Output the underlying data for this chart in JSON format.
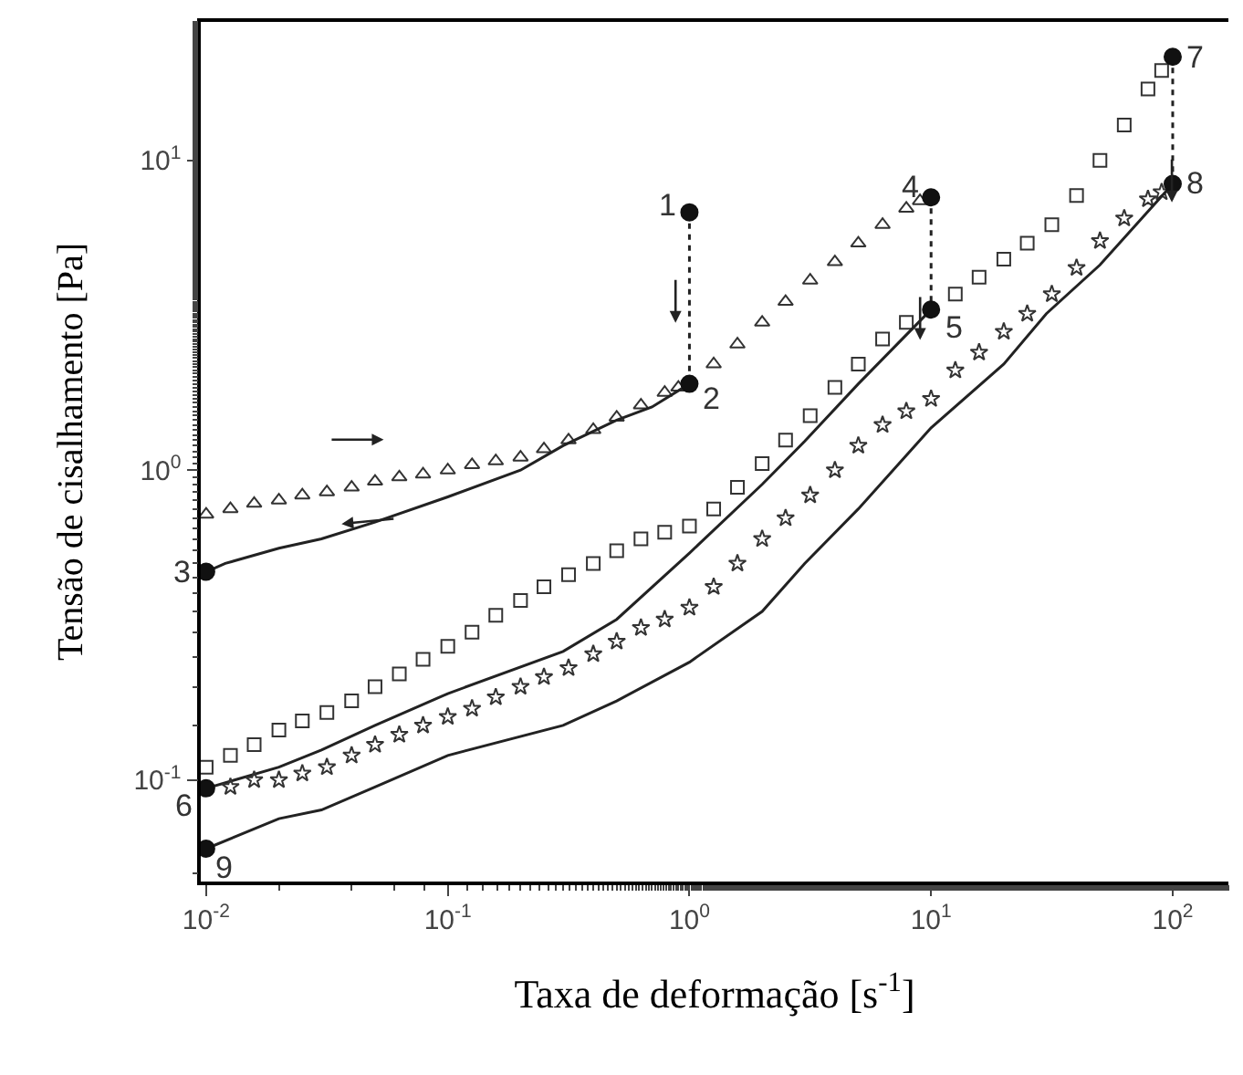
{
  "chart_data": {
    "type": "scatter",
    "xlabel": "Taxa de deformação [s$^{-1}$]",
    "ylabel": "Tensão de cisalhamento [Pa]",
    "log": "xy",
    "xlim": [
      0.0095,
      170
    ],
    "ylim": [
      0.047,
      28
    ],
    "xticks": [
      {
        "value": 0.01,
        "label": "10$^{-2}$"
      },
      {
        "value": 0.1,
        "label": "10$^{-1}$"
      },
      {
        "value": 1,
        "label": "10$^{0}$"
      },
      {
        "value": 10,
        "label": "10$^{1}$"
      },
      {
        "value": 100,
        "label": "10$^{2}$"
      }
    ],
    "yticks": [
      {
        "value": 0.1,
        "label": "10$^{-1}$"
      },
      {
        "value": 1,
        "label": "10$^{0}$"
      },
      {
        "value": 10,
        "label": "10$^{1}$"
      }
    ],
    "series": [
      {
        "marker": "triangle",
        "color": "#333333",
        "x": [
          0.01,
          0.0126,
          0.0158,
          0.02,
          0.025,
          0.0316,
          0.04,
          0.05,
          0.063,
          0.079,
          0.1,
          0.126,
          0.158,
          0.2,
          0.25,
          0.316,
          0.4,
          0.5,
          0.63,
          0.79,
          0.9,
          1.26,
          1.58,
          2,
          2.5,
          3.16,
          4,
          5,
          6.3,
          7.9,
          9
        ],
        "values": [
          0.72,
          0.75,
          0.78,
          0.8,
          0.83,
          0.85,
          0.88,
          0.92,
          0.95,
          0.97,
          1.0,
          1.04,
          1.07,
          1.1,
          1.17,
          1.25,
          1.35,
          1.48,
          1.62,
          1.78,
          1.85,
          2.2,
          2.55,
          3.0,
          3.5,
          4.1,
          4.7,
          5.4,
          6.2,
          7.0,
          7.4
        ]
      },
      {
        "type": "line",
        "color": "#222222",
        "line_style": "solid",
        "marker": "none",
        "x": [
          1,
          0.7,
          0.5,
          0.3,
          0.2,
          0.1,
          0.05,
          0.03,
          0.02,
          0.012,
          0.01
        ],
        "values": [
          1.9,
          1.6,
          1.45,
          1.2,
          1.0,
          0.82,
          0.68,
          0.6,
          0.56,
          0.5,
          0.47
        ]
      },
      {
        "marker": "square",
        "color": "#333333",
        "x": [
          0.01,
          0.0126,
          0.0158,
          0.02,
          0.025,
          0.0316,
          0.04,
          0.05,
          0.063,
          0.079,
          0.1,
          0.126,
          0.158,
          0.2,
          0.25,
          0.316,
          0.4,
          0.5,
          0.63,
          0.79,
          1,
          1.26,
          1.58,
          2,
          2.5,
          3.16,
          4,
          5,
          6.3,
          7.9,
          12.6,
          15.8,
          20,
          25,
          31.6,
          40,
          50,
          63,
          79,
          90
        ],
        "values": [
          0.11,
          0.12,
          0.13,
          0.145,
          0.155,
          0.165,
          0.18,
          0.2,
          0.22,
          0.245,
          0.27,
          0.3,
          0.34,
          0.38,
          0.42,
          0.46,
          0.5,
          0.55,
          0.6,
          0.63,
          0.66,
          0.75,
          0.88,
          1.05,
          1.25,
          1.5,
          1.85,
          2.2,
          2.65,
          3.0,
          3.7,
          4.2,
          4.8,
          5.4,
          6.2,
          7.7,
          10,
          13,
          17,
          19.5
        ]
      },
      {
        "type": "line",
        "color": "#222222",
        "line_style": "solid",
        "marker": "none",
        "x": [
          10,
          5,
          3,
          2,
          1,
          0.5,
          0.3,
          0.1,
          0.05,
          0.03,
          0.02,
          0.01
        ],
        "values": [
          3.3,
          1.9,
          1.24,
          0.9,
          0.54,
          0.33,
          0.26,
          0.19,
          0.15,
          0.125,
          0.11,
          0.094
        ]
      },
      {
        "marker": "star",
        "color": "#333333",
        "x": [
          0.0126,
          0.0158,
          0.02,
          0.025,
          0.0316,
          0.04,
          0.05,
          0.063,
          0.079,
          0.1,
          0.126,
          0.158,
          0.2,
          0.25,
          0.316,
          0.4,
          0.5,
          0.63,
          0.79,
          1,
          1.26,
          1.58,
          2,
          2.5,
          3.16,
          4,
          5,
          6.3,
          7.9,
          10,
          12.6,
          15.8,
          20,
          25,
          31.6,
          40,
          50,
          63,
          79,
          90
        ],
        "values": [
          0.095,
          0.1,
          0.1,
          0.105,
          0.11,
          0.12,
          0.13,
          0.14,
          0.15,
          0.16,
          0.17,
          0.185,
          0.2,
          0.215,
          0.23,
          0.255,
          0.28,
          0.31,
          0.33,
          0.36,
          0.42,
          0.5,
          0.6,
          0.7,
          0.83,
          1.0,
          1.2,
          1.4,
          1.55,
          1.7,
          2.1,
          2.4,
          2.8,
          3.2,
          3.7,
          4.5,
          5.5,
          6.5,
          7.5,
          7.9
        ]
      },
      {
        "type": "line",
        "color": "#222222",
        "line_style": "solid",
        "marker": "none",
        "x": [
          100,
          50,
          30,
          20,
          10,
          5,
          3,
          2,
          1,
          0.5,
          0.3,
          0.1,
          0.05,
          0.03,
          0.02,
          0.01
        ],
        "values": [
          8.4,
          4.6,
          3.2,
          2.2,
          1.37,
          0.75,
          0.5,
          0.35,
          0.24,
          0.18,
          0.15,
          0.12,
          0.095,
          0.08,
          0.075,
          0.06
        ]
      },
      {
        "type": "line",
        "color": "#222222",
        "line_style": "dotted",
        "marker": "none",
        "x": [
          1,
          1
        ],
        "values": [
          6.8,
          1.9
        ]
      },
      {
        "type": "line",
        "color": "#222222",
        "line_style": "dotted",
        "marker": "none",
        "x": [
          10,
          10
        ],
        "values": [
          7.6,
          3.3
        ]
      },
      {
        "type": "line",
        "color": "#222222",
        "line_style": "dotted",
        "marker": "none",
        "x": [
          100,
          100
        ],
        "values": [
          21.6,
          8.4
        ]
      },
      {
        "marker": "circle",
        "color": "#111111",
        "x": [
          1,
          1,
          0.01,
          10,
          10,
          0.01,
          100,
          100,
          0.01
        ],
        "values": [
          6.8,
          1.9,
          0.47,
          7.6,
          3.3,
          0.094,
          21.6,
          8.4,
          0.06
        ]
      }
    ],
    "annotations": [
      {
        "text": "1",
        "x": 1,
        "y": 6.8
      },
      {
        "text": "2",
        "x": 1,
        "y": 1.9
      },
      {
        "text": "3",
        "x": 0.01,
        "y": 0.47
      },
      {
        "text": "4",
        "x": 10,
        "y": 7.6
      },
      {
        "text": "5",
        "x": 10,
        "y": 3.3
      },
      {
        "text": "6",
        "x": 0.01,
        "y": 0.094
      },
      {
        "text": "7",
        "x": 100,
        "y": 21.6
      },
      {
        "text": "8",
        "x": 100,
        "y": 8.4
      },
      {
        "text": "9",
        "x": 0.01,
        "y": 0.06
      }
    ]
  }
}
